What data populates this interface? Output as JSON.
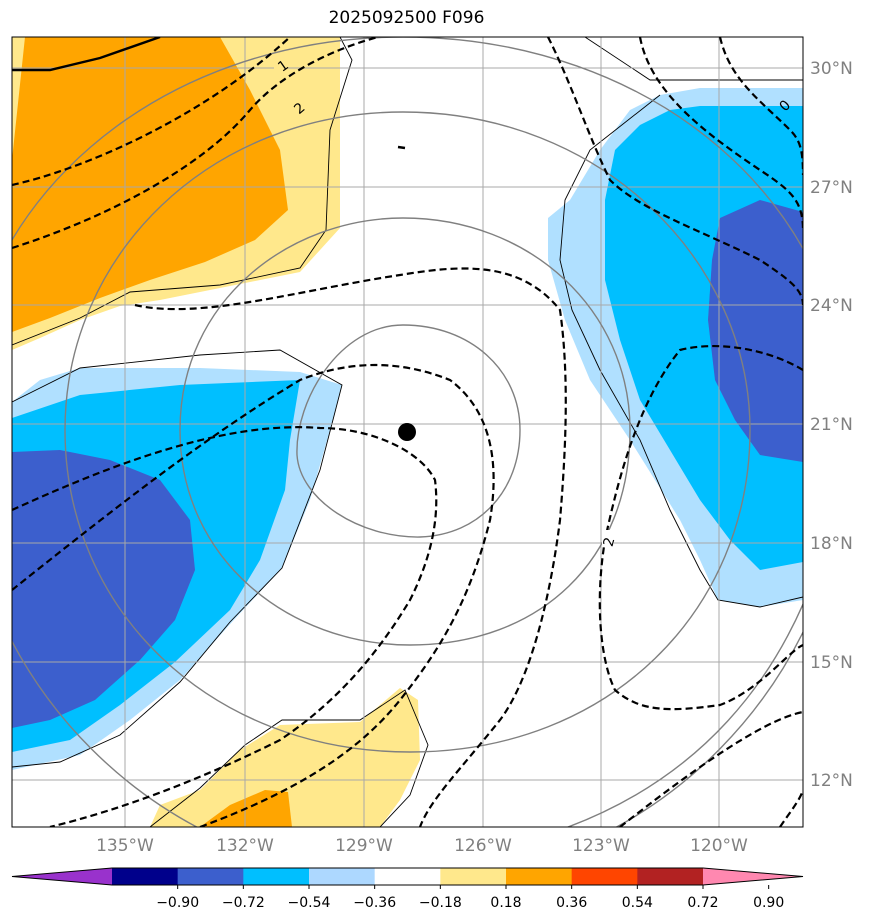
{
  "title": "2025092500 F096",
  "lat_labels": [
    "30°N",
    "27°N",
    "24°N",
    "21°N",
    "18°N",
    "15°N",
    "12°N"
  ],
  "lon_labels": [
    "135°W",
    "132°W",
    "129°W",
    "126°W",
    "123°W",
    "120°W"
  ],
  "colorbar": {
    "tick_labels": [
      "−0.90",
      "−0.72",
      "−0.54",
      "−0.36",
      "−0.18",
      "0.18",
      "0.36",
      "0.54",
      "0.72",
      "0.90"
    ],
    "colors": [
      "#9932cc",
      "#00008b",
      "#3c5fcd",
      "#00bfff",
      "#add8ff",
      "#ffffff",
      "#ffe88c",
      "#ffa500",
      "#ff4500",
      "#b22222",
      "#ff88b0"
    ]
  },
  "contour_labels": [
    "1",
    "2",
    "0",
    "2"
  ],
  "colors": {
    "positive_light": "#ffe88c",
    "positive_mid": "#ffa500",
    "negative_light": "#b0e0ff",
    "negative_mid": "#00bfff",
    "negative_dark": "#3c5fcd",
    "grid": "#a8a8a8",
    "storm_center": "#000000"
  }
}
